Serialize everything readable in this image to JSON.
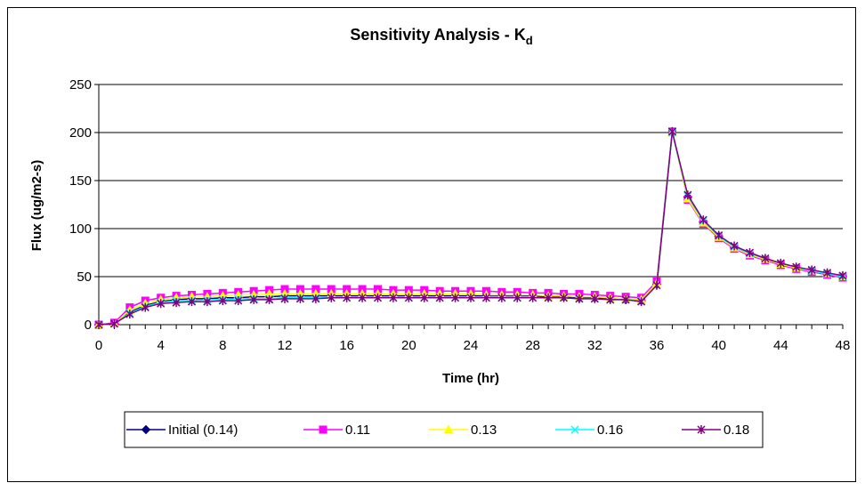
{
  "chart_data": {
    "type": "line",
    "title": "Sensitivity Analysis - K",
    "title_subscript": "d",
    "xlabel": "Time (hr)",
    "ylabel": "Flux (ug/m2-s)",
    "xlim": [
      0,
      48
    ],
    "ylim": [
      0,
      250
    ],
    "xticks": [
      0,
      4,
      8,
      12,
      16,
      20,
      24,
      28,
      32,
      36,
      40,
      44,
      48
    ],
    "yticks": [
      0,
      50,
      100,
      150,
      200,
      250
    ],
    "grid": "horizontal",
    "legend_position": "bottom",
    "x": [
      0,
      1,
      2,
      3,
      4,
      5,
      6,
      7,
      8,
      9,
      10,
      11,
      12,
      13,
      14,
      15,
      16,
      17,
      18,
      19,
      20,
      21,
      22,
      23,
      24,
      25,
      26,
      27,
      28,
      29,
      30,
      31,
      32,
      33,
      34,
      35,
      36,
      37,
      38,
      39,
      40,
      41,
      42,
      43,
      44,
      45,
      46,
      47,
      48
    ],
    "series": [
      {
        "name": "Initial (0.14)",
        "color": "#000080",
        "marker": "diamond",
        "values": [
          0,
          1,
          13,
          20,
          24,
          26,
          27,
          27,
          28,
          28,
          29,
          29,
          30,
          30,
          30,
          30,
          30,
          30,
          30,
          30,
          30,
          30,
          30,
          30,
          30,
          30,
          30,
          30,
          30,
          29,
          29,
          28,
          28,
          27,
          26,
          25,
          42,
          200,
          133,
          107,
          92,
          80,
          73,
          68,
          63,
          59,
          56,
          53,
          50
        ]
      },
      {
        "name": "0.11",
        "color": "#ff00ff",
        "marker": "square",
        "values": [
          0,
          2,
          18,
          25,
          28,
          30,
          31,
          32,
          33,
          34,
          35,
          36,
          37,
          37,
          37,
          37,
          37,
          37,
          37,
          36,
          36,
          36,
          35,
          35,
          35,
          35,
          34,
          34,
          33,
          33,
          32,
          32,
          31,
          30,
          29,
          28,
          45,
          201,
          130,
          105,
          90,
          79,
          72,
          67,
          62,
          58,
          55,
          52,
          49
        ]
      },
      {
        "name": "0.13",
        "color": "#ffff00",
        "marker": "triangle",
        "values": [
          0,
          1,
          15,
          22,
          26,
          28,
          29,
          29,
          30,
          31,
          31,
          32,
          32,
          32,
          32,
          32,
          32,
          32,
          32,
          32,
          32,
          32,
          32,
          32,
          32,
          31,
          31,
          31,
          31,
          30,
          30,
          29,
          29,
          28,
          27,
          26,
          43,
          200,
          131,
          106,
          91,
          80,
          73,
          68,
          63,
          59,
          56,
          53,
          50
        ]
      },
      {
        "name": "0.16",
        "color": "#00ffff",
        "marker": "x",
        "values": [
          0,
          1,
          12,
          19,
          23,
          25,
          25,
          26,
          26,
          27,
          27,
          27,
          28,
          28,
          28,
          28,
          28,
          28,
          28,
          28,
          28,
          28,
          28,
          28,
          28,
          28,
          28,
          28,
          28,
          28,
          28,
          27,
          27,
          26,
          26,
          25,
          41,
          200,
          134,
          108,
          92,
          81,
          74,
          69,
          64,
          60,
          56,
          53,
          50
        ]
      },
      {
        "name": "0.18",
        "color": "#800080",
        "marker": "star",
        "values": [
          0,
          1,
          11,
          18,
          22,
          23,
          24,
          24,
          25,
          25,
          26,
          26,
          27,
          27,
          27,
          28,
          28,
          28,
          28,
          28,
          28,
          28,
          28,
          28,
          28,
          28,
          28,
          28,
          28,
          28,
          28,
          27,
          27,
          26,
          26,
          24,
          41,
          201,
          135,
          109,
          93,
          82,
          75,
          69,
          64,
          60,
          57,
          54,
          51
        ]
      }
    ]
  }
}
